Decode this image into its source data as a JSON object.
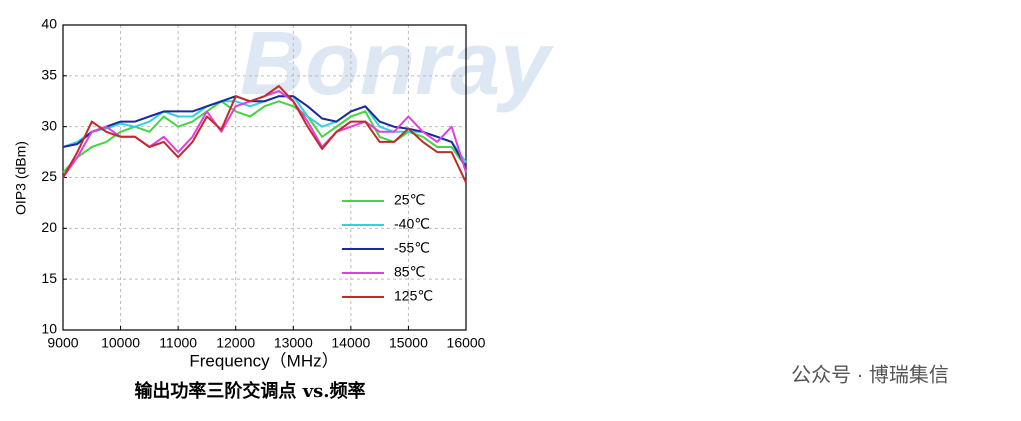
{
  "chart_data": {
    "type": "line",
    "x_label": "Frequency（MHz）",
    "y_label": "OIP3 (dBm)",
    "caption": "输出功率三阶交调点 vs.频率",
    "watermark": "公众号 · 博瑞集信",
    "x": [
      9000,
      9250,
      9500,
      9750,
      10000,
      10250,
      10500,
      10750,
      11000,
      11250,
      11500,
      11750,
      12000,
      12250,
      12500,
      12750,
      13000,
      13250,
      13500,
      13750,
      14000,
      14250,
      14500,
      14750,
      15000,
      15250,
      15500,
      15750,
      16000
    ],
    "series": [
      {
        "name": "25℃",
        "color": "#44d444",
        "values": [
          25.5,
          27,
          28,
          28.5,
          29.5,
          30,
          29.5,
          31,
          30,
          30.5,
          31.5,
          32.5,
          31.5,
          31,
          32,
          32.5,
          32,
          31,
          29,
          30,
          31,
          31.5,
          29,
          28.5,
          29.5,
          29,
          28,
          28,
          26
        ]
      },
      {
        "name": "-40℃",
        "color": "#2ed3d9",
        "values": [
          28,
          28.5,
          29.5,
          29.8,
          30.3,
          30,
          30.5,
          31.5,
          31,
          31,
          32,
          32.5,
          32.5,
          32,
          32.5,
          33,
          33,
          31,
          30,
          30.5,
          31.5,
          32,
          30,
          29.5,
          29.5,
          29.5,
          29,
          28.5,
          26.5
        ]
      },
      {
        "name": "-55℃",
        "color": "#1a2a9a",
        "values": [
          28,
          28.3,
          29.5,
          30,
          30.5,
          30.5,
          31,
          31.5,
          31.5,
          31.5,
          32,
          32.5,
          33,
          32.5,
          32.5,
          33,
          33,
          32,
          30.8,
          30.5,
          31.5,
          32,
          30.5,
          30,
          29.8,
          29.5,
          29,
          28.5,
          26
        ]
      },
      {
        "name": "85℃",
        "color": "#e040e0",
        "values": [
          25,
          27,
          29.5,
          30,
          29,
          29,
          28,
          29,
          27.5,
          29,
          31.5,
          29.5,
          32,
          32.5,
          33,
          33.5,
          32.5,
          30.5,
          28,
          29.5,
          30,
          30.5,
          29.5,
          29.5,
          31,
          29.5,
          28.5,
          30,
          25.5
        ]
      },
      {
        "name": "125℃",
        "color": "#c42a2a",
        "values": [
          25,
          27.5,
          30.5,
          29.5,
          29,
          29,
          28,
          28.5,
          27,
          28.5,
          31,
          29.7,
          33,
          32.5,
          33,
          34,
          32.5,
          30,
          27.8,
          29.5,
          30.5,
          30.5,
          28.5,
          28.5,
          29.8,
          28.5,
          27.5,
          27.5,
          24.5
        ]
      }
    ],
    "xlim": [
      9000,
      16000
    ],
    "xticks": [
      9000,
      10000,
      11000,
      12000,
      13000,
      14000,
      15000,
      16000
    ],
    "ylim": [
      10,
      40
    ],
    "yticks": [
      10,
      15,
      20,
      25,
      30,
      35,
      40
    ],
    "grid": true
  }
}
